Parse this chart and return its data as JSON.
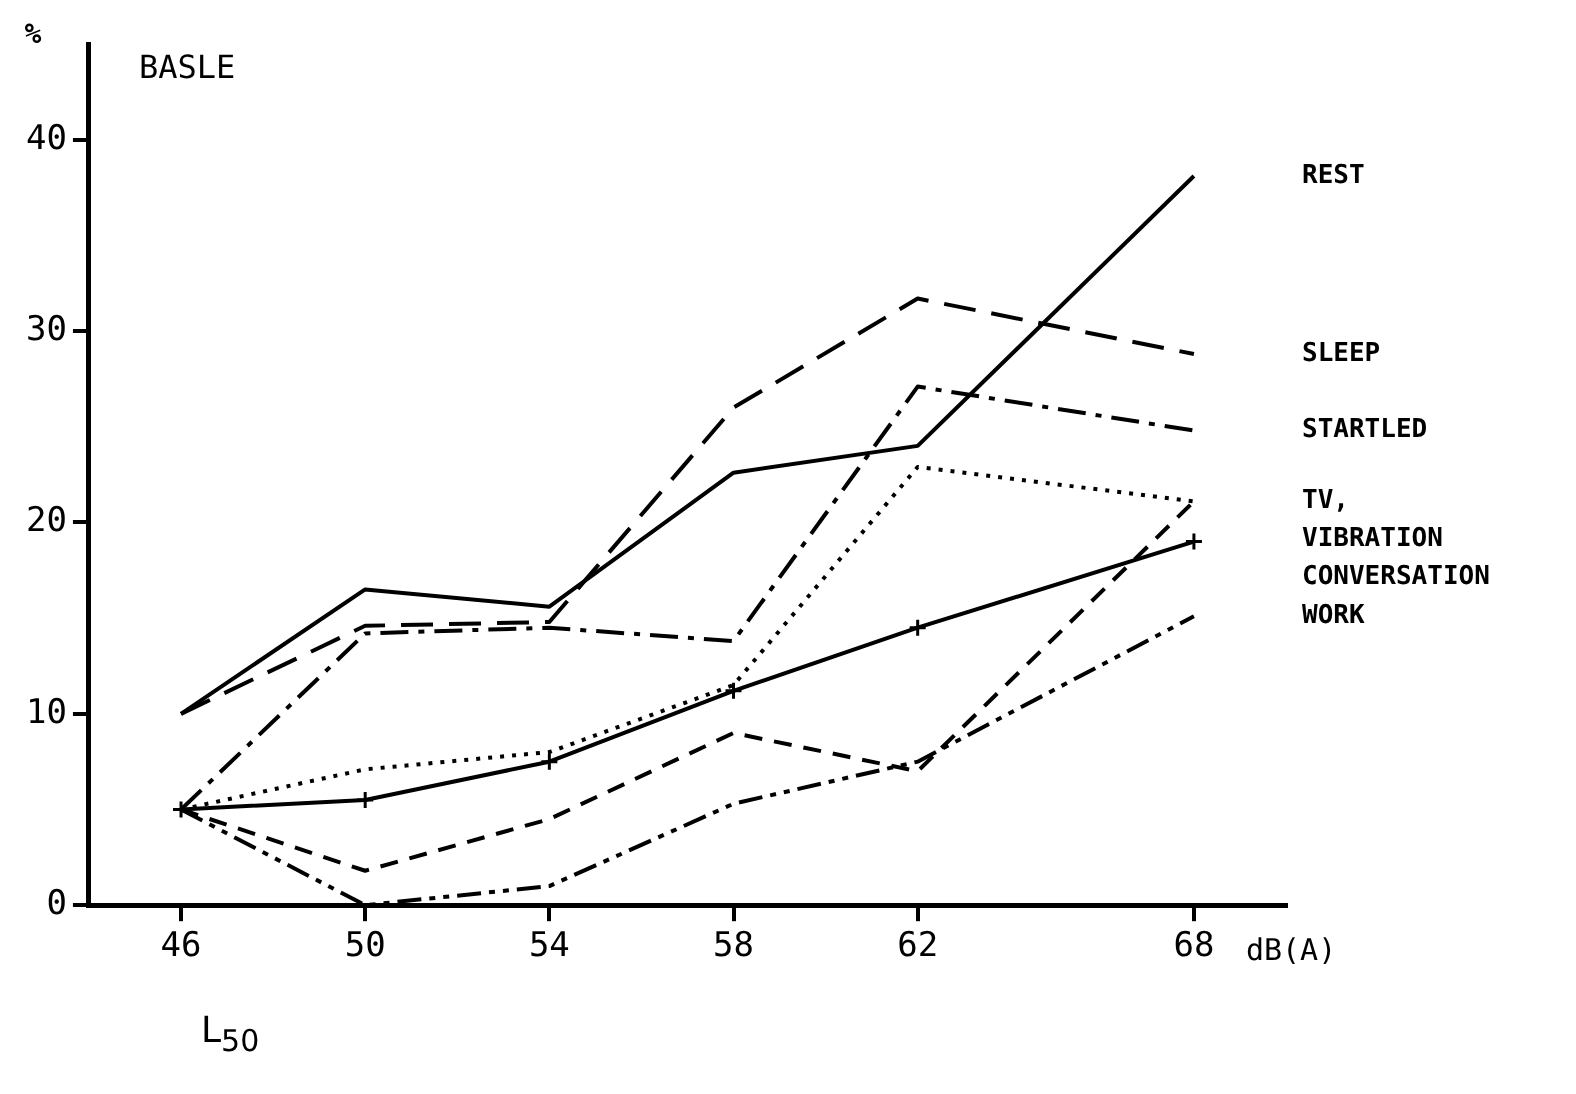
{
  "chart_data": {
    "type": "line",
    "ylabel": "%",
    "xlabel": "dB(A)",
    "annotations": [
      "BASLE",
      "L$_{50}$"
    ],
    "x": [
      46,
      50,
      54,
      58,
      62,
      68
    ],
    "xlim": [
      44,
      70
    ],
    "xticks": [
      46,
      50,
      54,
      58,
      62,
      68
    ],
    "ylim": [
      0,
      45
    ],
    "yticks": [
      0,
      10,
      20,
      30,
      40
    ],
    "grid": false,
    "legend": false,
    "marker": "none",
    "series": [
      {
        "name": "REST",
        "color": "#000000",
        "line_style": "solid",
        "values": [
          10,
          16.5,
          15.6,
          22.6,
          24,
          38.1
        ]
      },
      {
        "name": "SLEEP",
        "color": "#000000",
        "line_style": "dashed",
        "values": [
          10,
          14.6,
          14.8,
          26,
          31.7,
          28.8
        ]
      },
      {
        "name": "STARTLED",
        "color": "#000000",
        "line_style": "dashdot",
        "values": [
          5,
          14.2,
          14.5,
          13.8,
          27.1,
          24.8
        ]
      },
      {
        "name": "TV,",
        "color": "#000000",
        "line_style": "dotted",
        "values": [
          5,
          7.1,
          8,
          11.5,
          22.9,
          21.1
        ]
      },
      {
        "name": "VIBRATION",
        "color": "#000000",
        "line_style": "shortdash",
        "values": [
          5,
          1.8,
          4.5,
          9,
          7,
          21.1
        ]
      },
      {
        "name": "CONVERSATION",
        "color": "#000000",
        "line_style": "solid",
        "marker": "cross",
        "values": [
          5,
          5.5,
          7.5,
          11.2,
          14.5,
          19
        ]
      },
      {
        "name": "WORK",
        "color": "#000000",
        "line_style": "dashdotdot",
        "values": [
          5,
          0,
          1,
          5.3,
          7.5,
          15.1
        ]
      }
    ]
  }
}
